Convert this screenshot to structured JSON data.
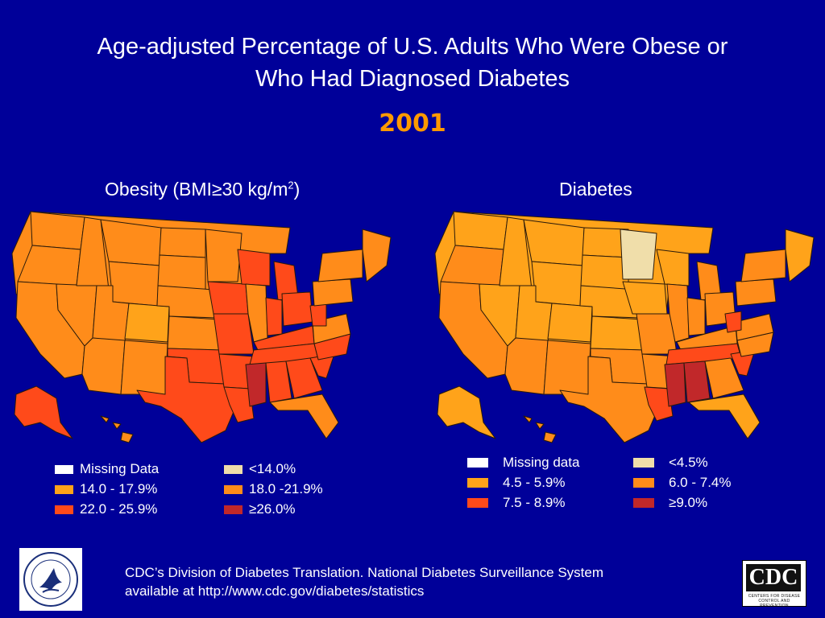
{
  "title_line1": "Age-adjusted Percentage of U.S. Adults Who Were Obese or",
  "title_line2": "Who Had Diagnosed Diabetes",
  "year": "2001",
  "obesity": {
    "title": "Obesity (BMI≥30 kg/m",
    "title_sup": "2",
    "title_end": ")",
    "legend": [
      {
        "label": "Missing Data",
        "color": "#ffffff"
      },
      {
        "label": "14.0 - 17.9%",
        "color": "#ffa31a"
      },
      {
        "label": "22.0 - 25.9%",
        "color": "#ff4a1a"
      },
      {
        "label": "<14.0%",
        "color": "#f0deaa"
      },
      {
        "label": "18.0 -21.9%",
        "color": "#ff8c1a"
      },
      {
        "label": "≥26.0%",
        "color": "#c1282a"
      }
    ]
  },
  "diabetes": {
    "title": "Diabetes",
    "legend": [
      {
        "label": "Missing data",
        "color": "#ffffff"
      },
      {
        "label": "4.5 - 5.9%",
        "color": "#ffa31a"
      },
      {
        "label": "7.5 - 8.9%",
        "color": "#ff4a1a"
      },
      {
        "label": "<4.5%",
        "color": "#f0deaa"
      },
      {
        "label": "6.0 - 7.4%",
        "color": "#ff8c1a"
      },
      {
        "label": "≥9.0%",
        "color": "#c1282a"
      }
    ]
  },
  "footer_line1": "CDC’s Division of Diabetes Translation.  National Diabetes Surveillance System",
  "footer_line2": "available at http://www.cdc.gov/diabetes/statistics",
  "cdc_logo_text": "CDC",
  "cdc_logo_sub": "CENTERS FOR DISEASE CONTROL AND PREVENTION",
  "colors": {
    "background": "#000099",
    "year": "#ff9900",
    "state_border": "#2a1a0a"
  }
}
